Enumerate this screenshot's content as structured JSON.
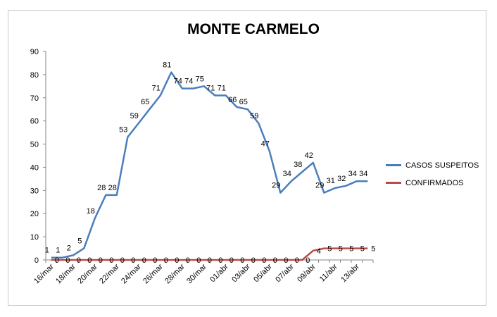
{
  "chart_data": {
    "type": "line",
    "title": "MONTE CARMELO",
    "xlabel": "",
    "ylabel": "",
    "ylim": [
      0,
      90
    ],
    "yticks": [
      0,
      10,
      20,
      30,
      40,
      50,
      60,
      70,
      80,
      90
    ],
    "grid": false,
    "legend_position": "right",
    "x_tick_labels": [
      "16/mar",
      "18/mar",
      "20/mar",
      "22/mar",
      "24/mar",
      "26/mar",
      "28/mar",
      "30/mar",
      "01/abr",
      "03/abr",
      "05/abr",
      "07/abr",
      "09/abr",
      "11/abr",
      "13/abr"
    ],
    "series": [
      {
        "name": "CASOS SUSPEITOS",
        "color": "#4a7ebb",
        "values": [
          1,
          1,
          2,
          5,
          18,
          28,
          28,
          53,
          59,
          65,
          71,
          81,
          74,
          74,
          75,
          71,
          71,
          66,
          65,
          59,
          47,
          29,
          34,
          38,
          42,
          29,
          31,
          32,
          34,
          34
        ]
      },
      {
        "name": "CONFIRMADOS",
        "color": "#be4b48",
        "values": [
          0,
          0,
          0,
          0,
          0,
          0,
          0,
          0,
          0,
          0,
          0,
          0,
          0,
          0,
          0,
          0,
          0,
          0,
          0,
          0,
          0,
          0,
          0,
          0,
          4,
          5,
          5,
          5,
          5,
          5
        ]
      }
    ]
  }
}
